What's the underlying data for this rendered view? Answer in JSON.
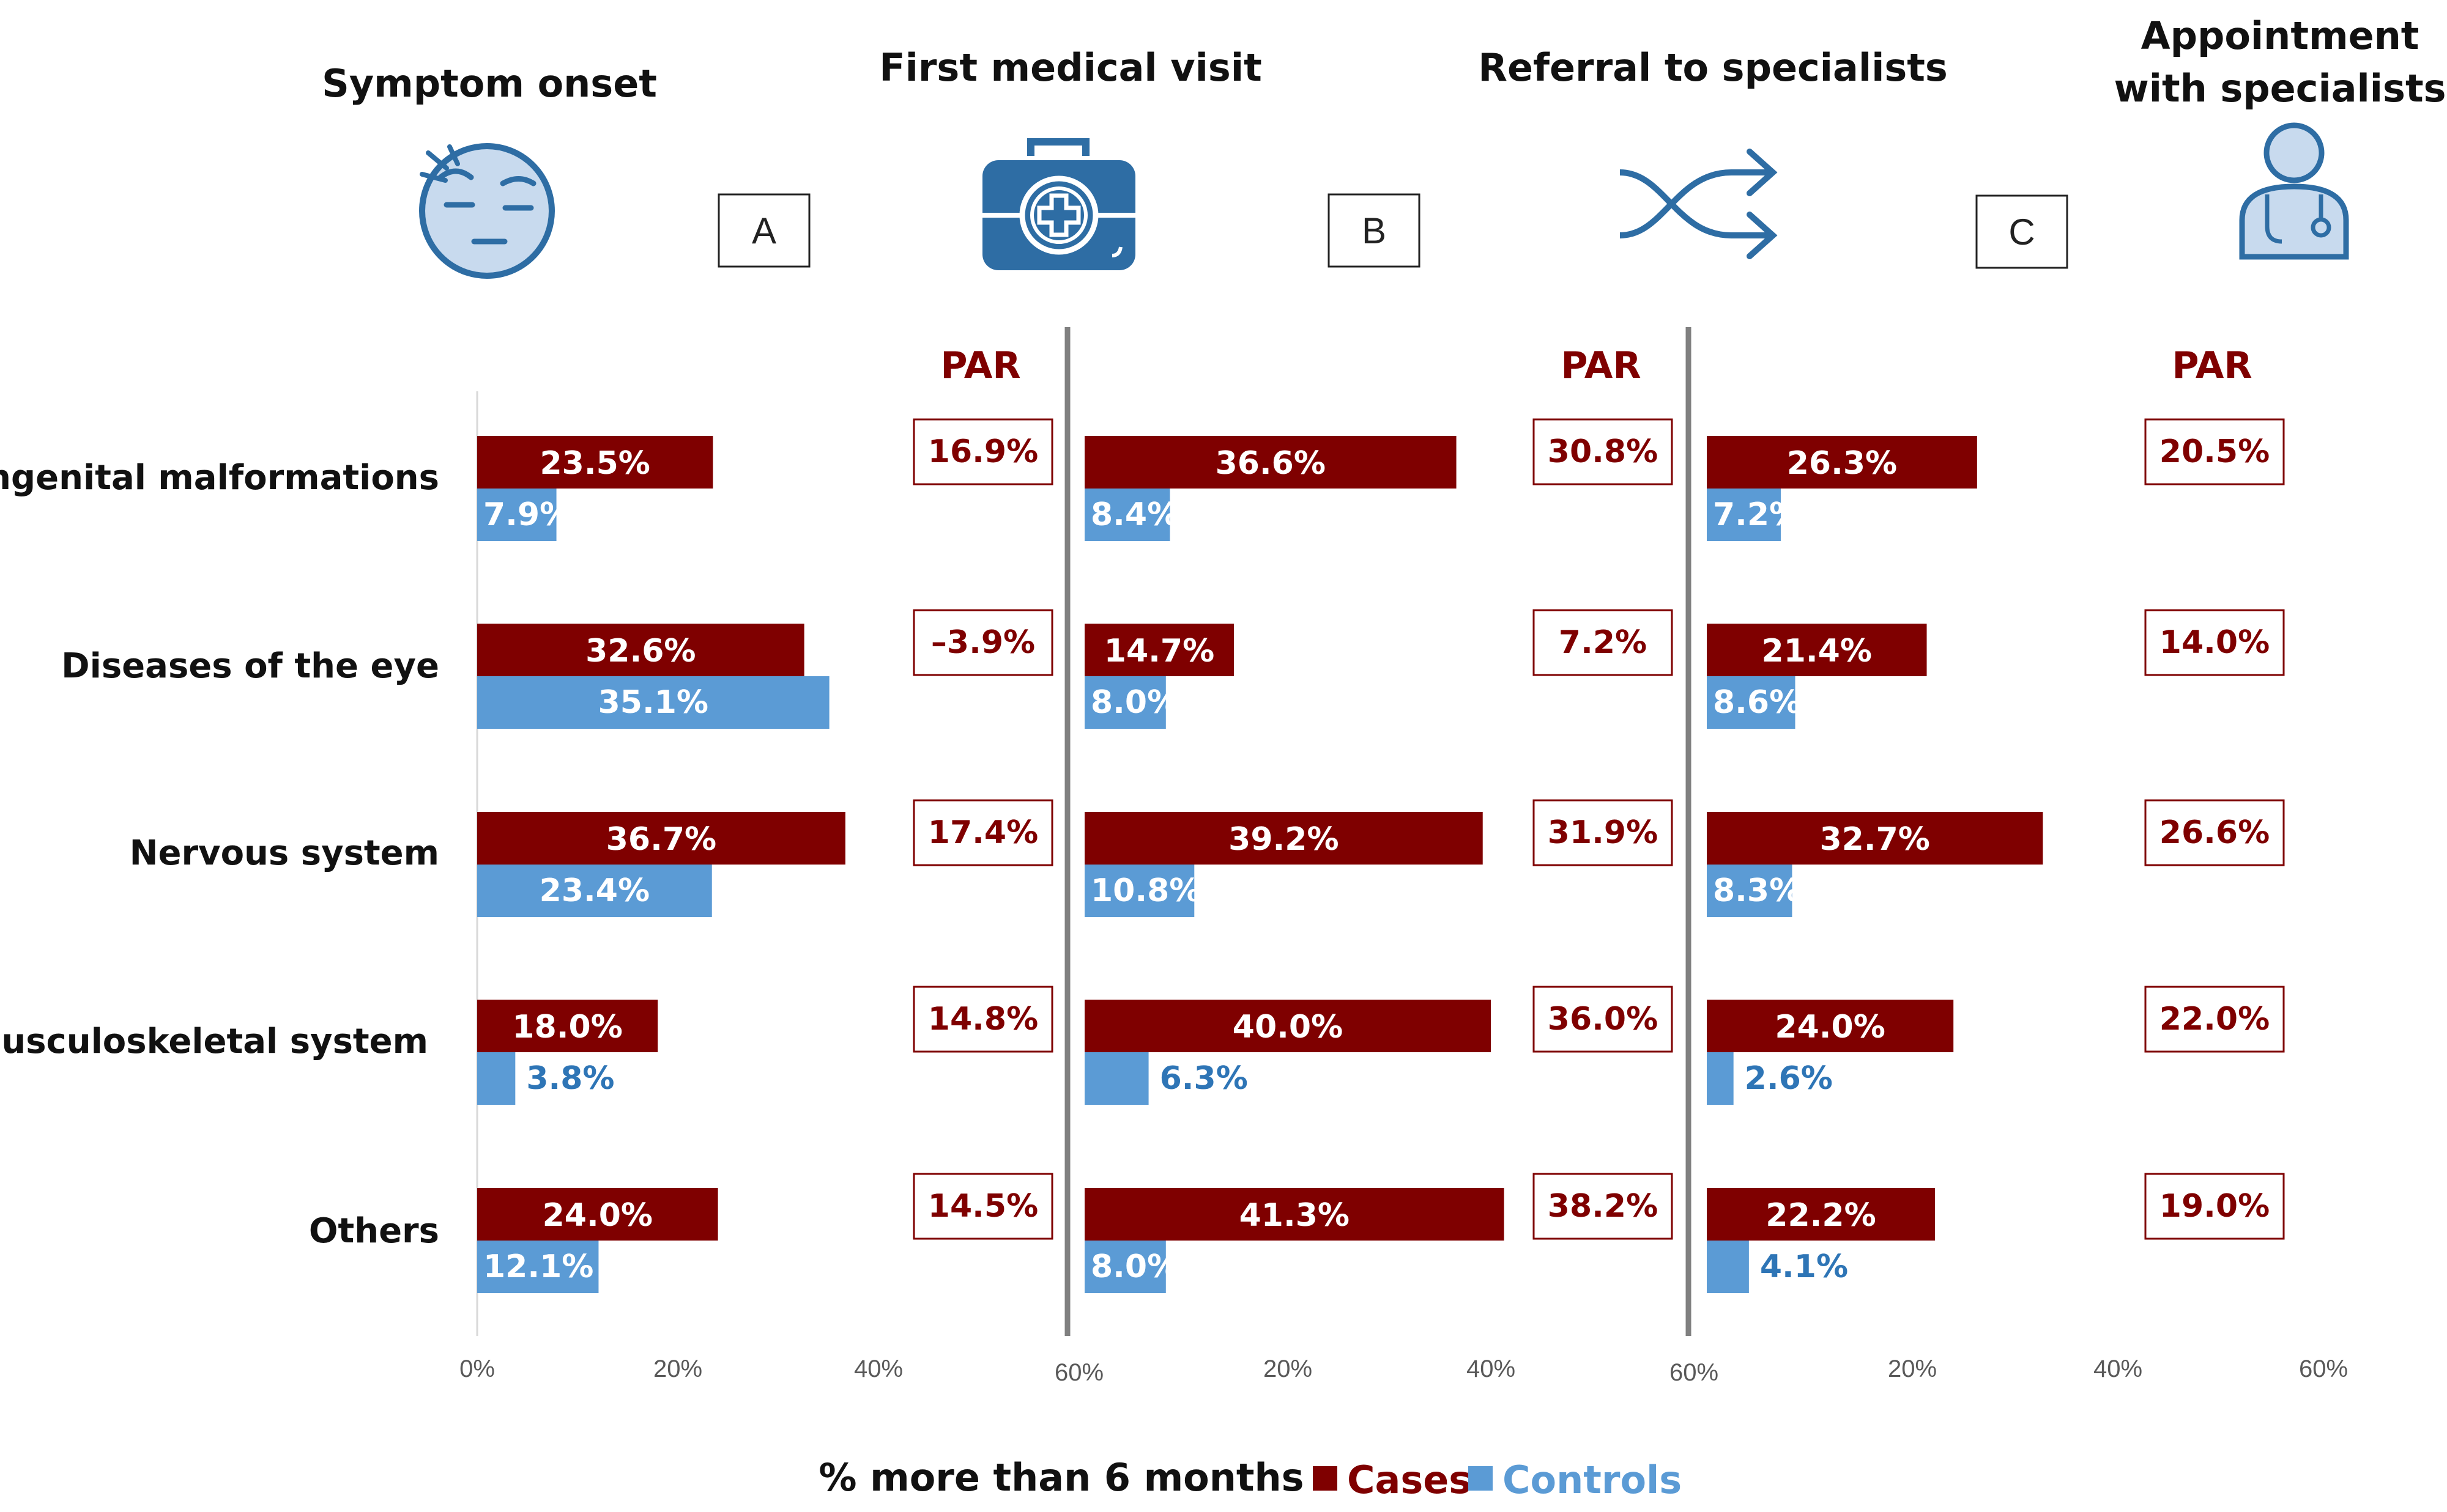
{
  "colors": {
    "cases": "#7f0000",
    "controls": "#5b9bd5",
    "par_text": "#7f0000",
    "cases_label_text": "#ffffff",
    "controls_inside_text": "#ffffff",
    "controls_outside_text": "#2e75b6",
    "icon_blue": "#2e6da4",
    "icon_fill": "#c8daee",
    "divider": "#808080"
  },
  "stages": [
    {
      "title_lines": [
        "Symptom onset"
      ],
      "icon": "sad-face-icon"
    },
    {
      "title_lines": [
        "First medical visit"
      ],
      "icon": "medical-kit-icon"
    },
    {
      "title_lines": [
        "Referral to specialists"
      ],
      "icon": "shuffle-arrows-icon"
    },
    {
      "title_lines": [
        "Appointment",
        "with specialists"
      ],
      "icon": "doctor-icon"
    }
  ],
  "panel_letters": [
    "A",
    "B",
    "C"
  ],
  "par_label": "PAR",
  "chart_data": {
    "type": "bar",
    "orientation": "horizontal",
    "categories": [
      "Congenital malformations",
      "Diseases of the eye",
      "Nervous system",
      "Musculoskeletal system",
      "Others"
    ],
    "panels": [
      {
        "letter": "A",
        "from": "Symptom onset",
        "to": "First medical visit",
        "series": [
          {
            "name": "Cases",
            "values": [
              23.5,
              32.6,
              36.7,
              18.0,
              24.0
            ],
            "labels": [
              "23.5%",
              "32.6%",
              "36.7%",
              "18.0%",
              "24.0%"
            ]
          },
          {
            "name": "Controls",
            "values": [
              7.9,
              35.1,
              23.4,
              3.8,
              12.1
            ],
            "labels": [
              "7.9%",
              "35.1%",
              "23.4%",
              "3.8%",
              "12.1%"
            ]
          }
        ],
        "par": [
          "16.9%",
          "–3.9%",
          "17.4%",
          "14.8%",
          "14.5%"
        ],
        "xlim": [
          0,
          60
        ],
        "ticks": [
          "0%",
          "20%",
          "40%",
          "60%"
        ]
      },
      {
        "letter": "B",
        "from": "First medical visit",
        "to": "Referral to specialists",
        "series": [
          {
            "name": "Cases",
            "values": [
              36.6,
              14.7,
              39.2,
              40.0,
              41.3
            ],
            "labels": [
              "36.6%",
              "14.7%",
              "39.2%",
              "40.0%",
              "41.3%"
            ]
          },
          {
            "name": "Controls",
            "values": [
              8.4,
              8.0,
              10.8,
              6.3,
              8.0
            ],
            "labels": [
              "8.4%",
              "8.0%",
              "10.8%",
              "6.3%",
              "8.0%"
            ]
          }
        ],
        "par": [
          "30.8%",
          "7.2%",
          "31.9%",
          "36.0%",
          "38.2%"
        ],
        "xlim": [
          0,
          60
        ],
        "ticks": [
          "20%",
          "40%",
          "60%"
        ]
      },
      {
        "letter": "C",
        "from": "Referral to specialists",
        "to": "Appointment with specialists",
        "series": [
          {
            "name": "Cases",
            "values": [
              26.3,
              21.4,
              32.7,
              24.0,
              22.2
            ],
            "labels": [
              "26.3%",
              "21.4%",
              "32.7%",
              "24.0%",
              "22.2%"
            ]
          },
          {
            "name": "Controls",
            "values": [
              7.2,
              8.6,
              8.3,
              2.6,
              4.1
            ],
            "labels": [
              "7.2%",
              "8.6%",
              "8.3%",
              "2.6%",
              "4.1%"
            ]
          }
        ],
        "par": [
          "20.5%",
          "14.0%",
          "26.6%",
          "22.0%",
          "19.0%"
        ],
        "xlim": [
          0,
          60
        ],
        "ticks": [
          "20%",
          "40%",
          "60%"
        ]
      }
    ],
    "xlabel": "% more than 6 months",
    "legend": {
      "position": "bottom-center",
      "entries": [
        "Cases",
        "Controls"
      ]
    }
  }
}
